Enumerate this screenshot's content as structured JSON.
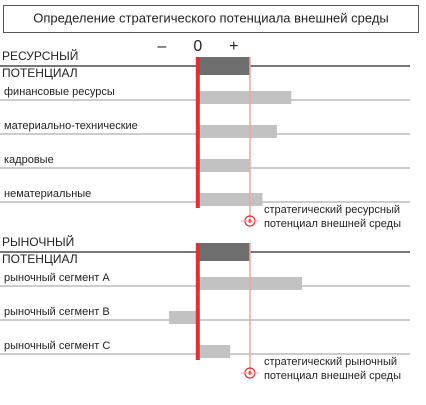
{
  "chart_data": {
    "type": "bar",
    "title": "Определение стратегического потенциала внешней среды",
    "xlim": [
      -5.5,
      5.9
    ],
    "xticks": [
      {
        "value": -1,
        "label": "–"
      },
      {
        "value": 0,
        "label": "0"
      },
      {
        "value": 1,
        "label": "+"
      }
    ],
    "zero_color": "#e03131",
    "total_color": "#6e6e6e",
    "bar_color": "#c2c2c2",
    "marker_color": "#f2a3a3",
    "groups": [
      {
        "title": [
          "РЕСУРСНЫЙ",
          "ПОТЕНЦИАЛ"
        ],
        "total": 1.45,
        "categories": [
          "финансовые ресурсы",
          "материально-технические",
          "кадровые",
          "нематериальные"
        ],
        "values": [
          2.6,
          2.2,
          1.45,
          1.8
        ],
        "annotation": [
          "стратегический ресурсный",
          "потенциал внешней среды"
        ]
      },
      {
        "title": [
          "РЫНОЧНЫЙ",
          "ПОТЕНЦИАЛ"
        ],
        "total": 1.45,
        "categories": [
          "рыночный сегмент А",
          "рыночный сегмент В",
          "рыночный сегмент С"
        ],
        "values": [
          2.9,
          -0.8,
          0.9
        ],
        "annotation": [
          "стратегический рыночный",
          "потенциал внешней среды"
        ]
      }
    ]
  }
}
